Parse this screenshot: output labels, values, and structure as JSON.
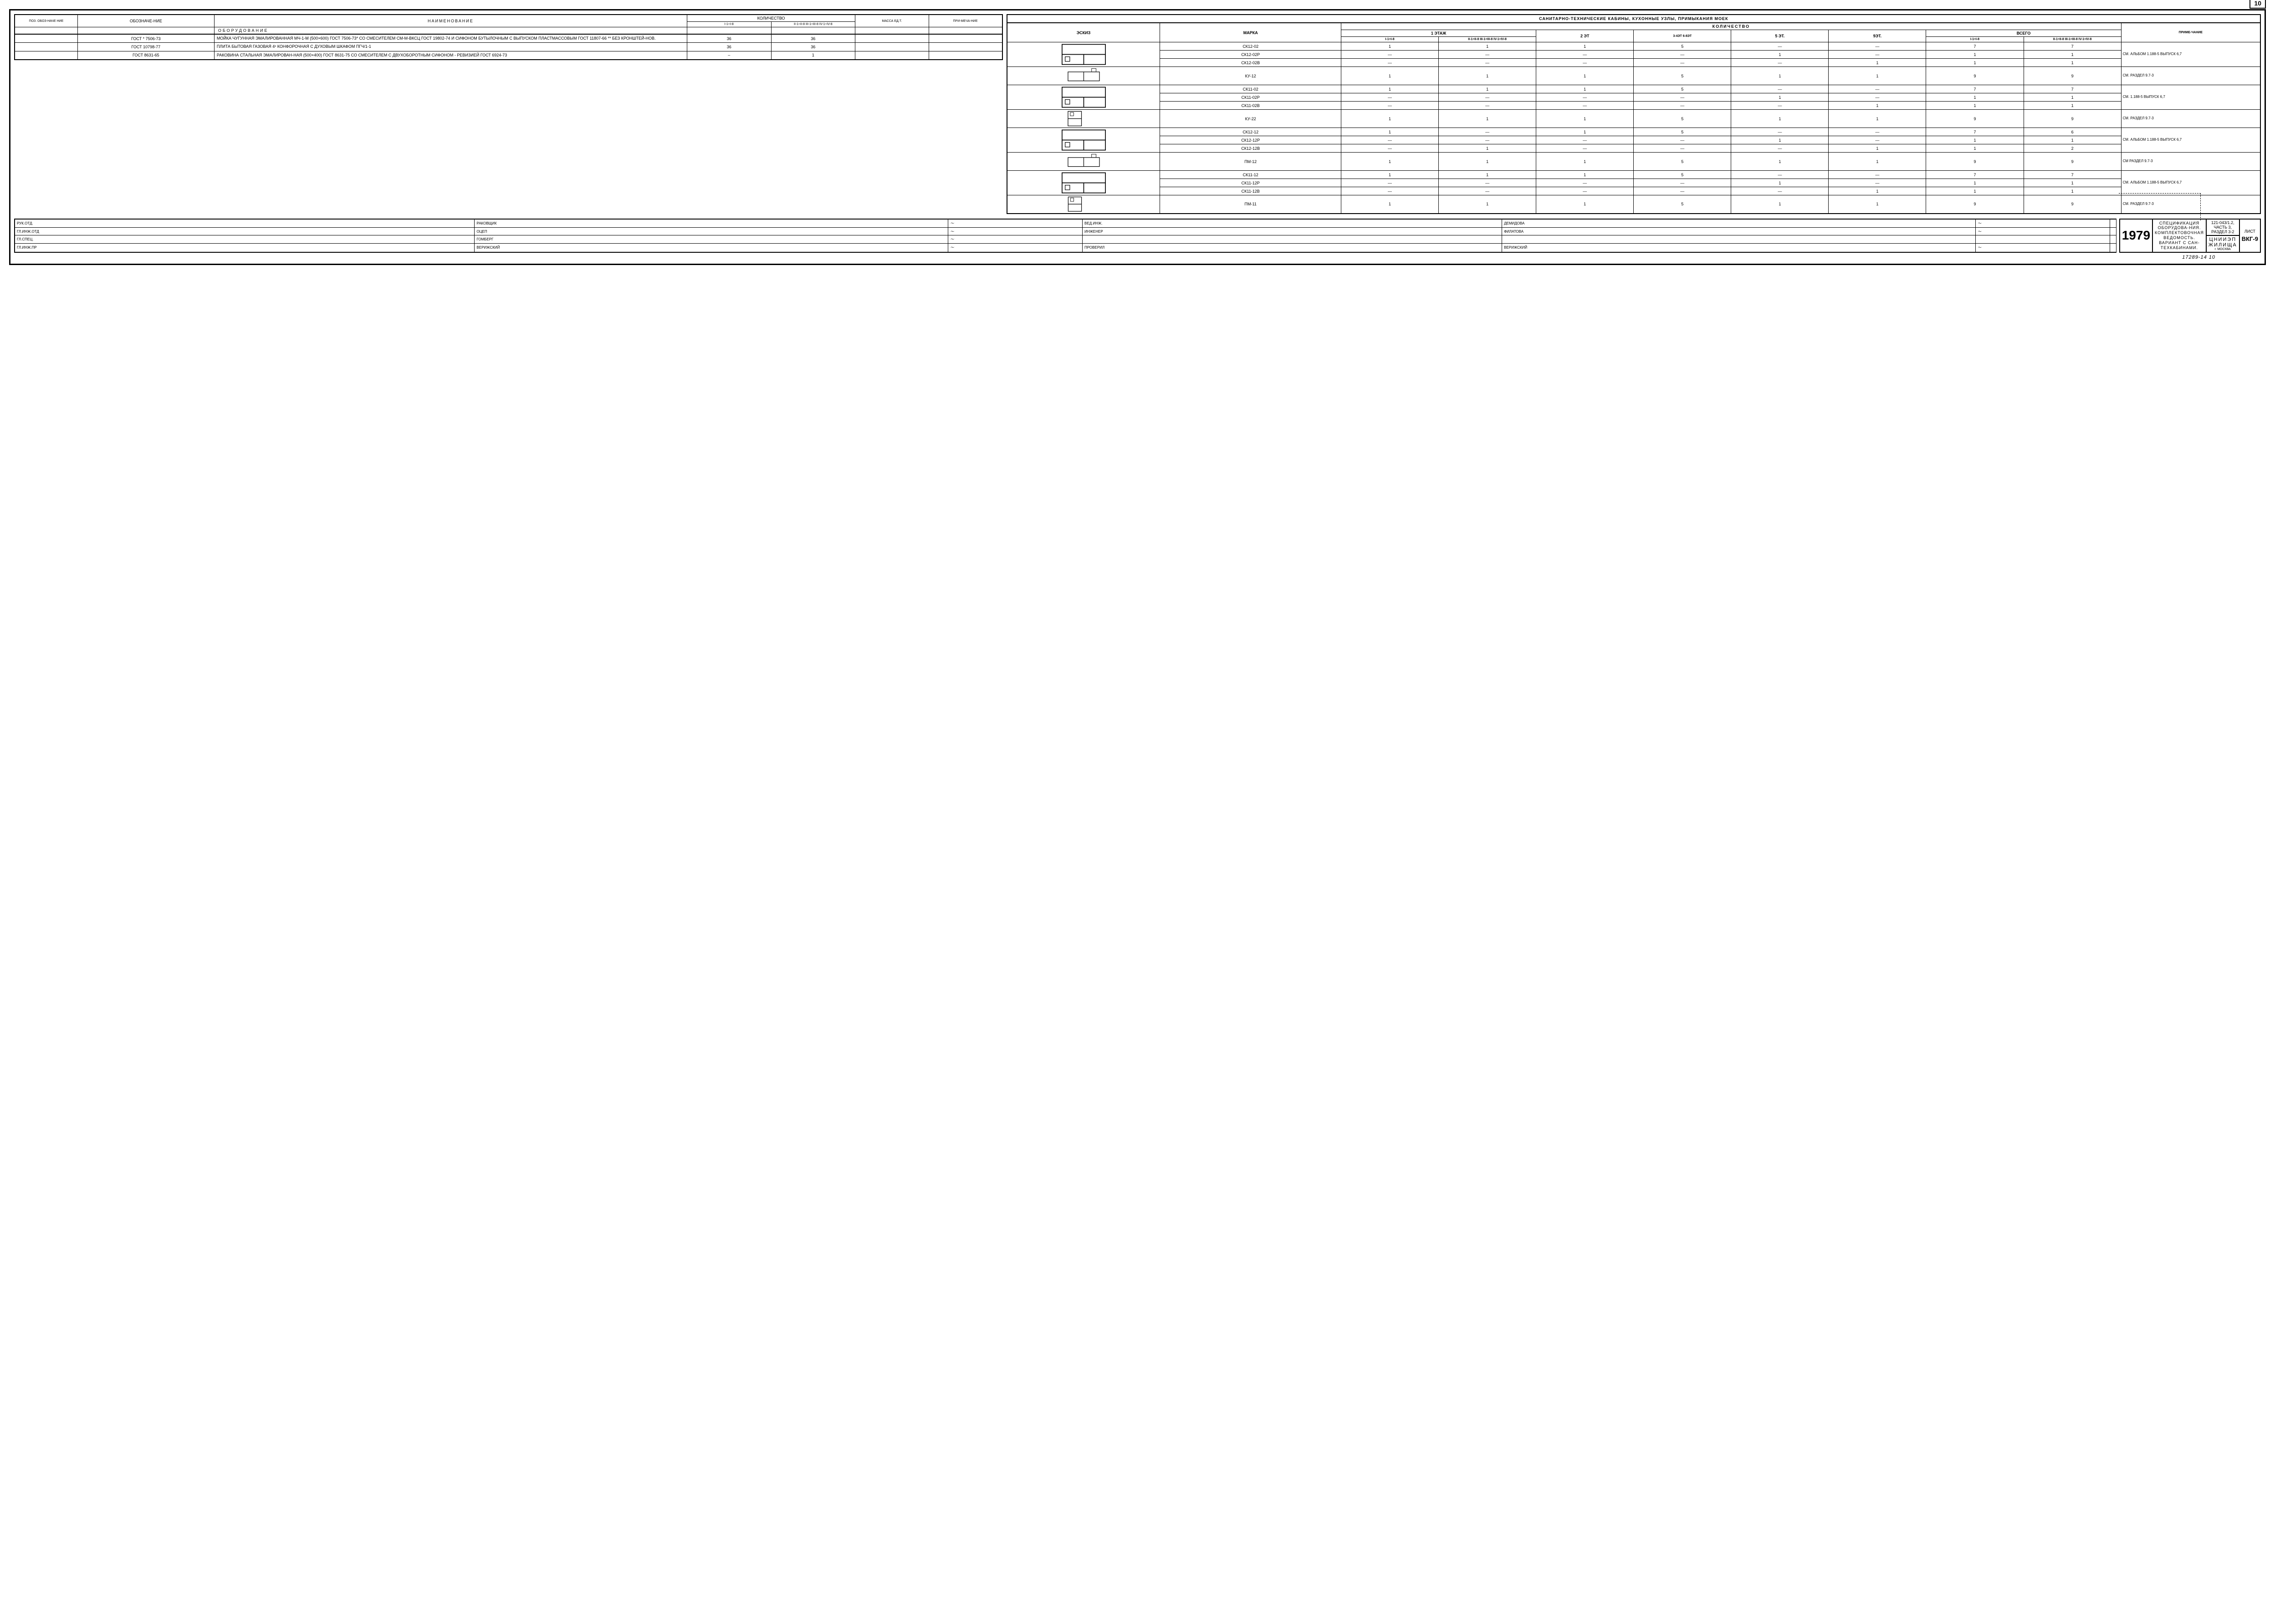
{
  "page_number_top": "10",
  "left_table": {
    "headers": {
      "pos": "ПОЗ. ОБОЗ-НАЧЕ НИЕ",
      "desig": "ОБОЗНАЧЕ-НИЕ",
      "name": "НАИМЕНОВАНИЕ",
      "qty": "КОЛИЧЕСТВО",
      "qty_col1": "I-1÷I-8",
      "qty_col2": "II-1÷II-8 III-1÷III-8 IV-1÷IV-8",
      "mass": "МАССА ЕД.Т.",
      "note": "ПРИ-МЕЧА-НИЕ"
    },
    "section": "ОБОРУДОВАНИЕ",
    "rows": [
      {
        "desig": "ГОСТ * 7506-73",
        "name": "МОЙКА ЧУГУННАЯ ЭМАЛИРОВАННАЯ МЧ-1-М (500×600) ГОСТ 7506-73* СО СМЕСИТЕЛЕМ СМ-М-ВКСЦ ГОСТ 19802-74 И СИФОНОМ БУТЫЛОЧНЫМ С ВЫПУСКОМ ПЛАСТМАССОВЫМ ГОСТ 11807-66 ** БЕЗ КРОНШТЕЙ-НОВ.",
        "q1": "36",
        "q2": "36",
        "mass": "",
        "note": ""
      },
      {
        "desig": "ГОСТ 10798-77",
        "name": "ПЛИТА БЫТОВАЯ ГАЗОВАЯ 4ˣ КОНФОРОЧНАЯ С ДУХОВЫМ ШКАФОМ ПГЧ/1-1",
        "q1": "36",
        "q2": "36",
        "mass": "",
        "note": ""
      },
      {
        "desig": "ГОСТ 8631-65",
        "name": "РАКОВИНА СТАЛЬНАЯ ЭМАЛИРОВАН-НАЯ (500×400) ГОСТ 8631-75 СО СМЕСИТЕЛЕМ С ДВУХОБОРОТНЫМ СИФОНОМ - РЕВИЗИЕЙ ГОСТ 6924-73",
        "q1": "–",
        "q2": "1",
        "mass": "",
        "note": ""
      }
    ]
  },
  "right_table": {
    "title": "САНИТАРНО-ТЕХНИЧЕСКИЕ КАБИНЫ, КУХОННЫЕ УЗЛЫ, ПРИМЫКАНИЯ МОЕК",
    "headers": {
      "sketch": "ЭСКИЗ",
      "mark": "МАРКА",
      "qty": "КОЛИЧЕСТВО",
      "floor1": "1 ЭТАЖ",
      "f1a": "I-1÷I-8",
      "f1b": "II-1÷II-8 III-1÷III-8 IV-1÷IV-8",
      "floor2": "2 ЭТ",
      "floor34": "3-4ЭТ 6-8ЭТ",
      "floor5": "5 ЭТ.",
      "floor9": "9ЭТ.",
      "total": "ВСЕГО",
      "tot_a": "I-1÷I-8",
      "tot_b": "II-1÷II-8 III-1÷III-8 IV-1÷IV-8",
      "note": "ПРИМЕ-ЧАНИЕ"
    },
    "groups": [
      {
        "sketch_rows": 3,
        "sketch": "sk1",
        "rows": [
          {
            "mark": "СК12-02",
            "v": [
              "1",
              "1",
              "1",
              "5",
              "—",
              "—",
              "7",
              "7"
            ]
          },
          {
            "mark": "СК12-02Р",
            "v": [
              "—",
              "—",
              "—",
              "—",
              "1",
              "—",
              "1",
              "1"
            ]
          },
          {
            "mark": "СК12-02В",
            "v": [
              "—",
              "—",
              "—",
              "—",
              "—",
              "1",
              "1",
              "1"
            ]
          }
        ],
        "note": "СМ. АЛЬБОМ 1.188-5 ВЫПУСК 6,7"
      },
      {
        "sketch_rows": 1,
        "sketch": "sk2",
        "rows": [
          {
            "mark": "КУ-12",
            "v": [
              "1",
              "1",
              "1",
              "5",
              "1",
              "1",
              "9",
              "9"
            ]
          }
        ],
        "note": "СМ. РАЗДЕЛ 9.7-3"
      },
      {
        "sketch_rows": 3,
        "sketch": "sk3",
        "rows": [
          {
            "mark": "СК11-02",
            "v": [
              "1",
              "1",
              "1",
              "5",
              "—",
              "—",
              "7",
              "7"
            ]
          },
          {
            "mark": "СК11-02Р",
            "v": [
              "—",
              "—",
              "—",
              "—",
              "1",
              "—",
              "1",
              "1"
            ]
          },
          {
            "mark": "СК11-02В",
            "v": [
              "—",
              "—",
              "—",
              "—",
              "—",
              "1",
              "1",
              "1"
            ]
          }
        ],
        "note": "СМ. 1.188-5 ВЫПУСК 6,7"
      },
      {
        "sketch_rows": 1,
        "sketch": "sk4",
        "rows": [
          {
            "mark": "КУ-22",
            "v": [
              "1",
              "1",
              "1",
              "5",
              "1",
              "1",
              "9",
              "9"
            ]
          }
        ],
        "note": "СМ. РАЗДЕЛ 9.7-3"
      },
      {
        "sketch_rows": 3,
        "sketch": "sk5",
        "rows": [
          {
            "mark": "СК12-12",
            "v": [
              "1",
              "—",
              "1",
              "5",
              "—",
              "—",
              "7",
              "6"
            ]
          },
          {
            "mark": "СК12-12Р",
            "v": [
              "—",
              "—",
              "—",
              "—",
              "1",
              "—",
              "1",
              "1"
            ]
          },
          {
            "mark": "СК12-12В",
            "v": [
              "—",
              "1",
              "—",
              "—",
              "—",
              "1",
              "1",
              "2"
            ]
          }
        ],
        "note": "СМ. АЛЬБОМ 1.188-5 ВЫПУСК 6,7"
      },
      {
        "sketch_rows": 1,
        "sketch": "sk6",
        "rows": [
          {
            "mark": "ПМ-12",
            "v": [
              "1",
              "1",
              "1",
              "5",
              "1",
              "1",
              "9",
              "9"
            ]
          }
        ],
        "note": "СМ РАЗДЕЛ 9.7-3"
      },
      {
        "sketch_rows": 3,
        "sketch": "sk7",
        "rows": [
          {
            "mark": "СК11-12",
            "v": [
              "1",
              "1",
              "1",
              "5",
              "—",
              "—",
              "7",
              "7"
            ]
          },
          {
            "mark": "СК11-12Р",
            "v": [
              "—",
              "—",
              "—",
              "—",
              "1",
              "—",
              "1",
              "1"
            ]
          },
          {
            "mark": "СК11-12В",
            "v": [
              "—",
              "—",
              "—",
              "—",
              "—",
              "1",
              "1",
              "1"
            ]
          }
        ],
        "note": "СМ. АЛЬБОМ 1.188-5 ВЫПУСК 6,7"
      },
      {
        "sketch_rows": 1,
        "sketch": "sk8",
        "rows": [
          {
            "mark": "ПМ-11",
            "v": [
              "1",
              "1",
              "1",
              "5",
              "1",
              "1",
              "9",
              "9"
            ]
          }
        ],
        "note": "СМ. РАЗДЕЛ 9.7-3"
      }
    ]
  },
  "title_block": {
    "signatures": [
      {
        "role": "РУК.ОТД.",
        "name": "РАКОВЩИК",
        "role2": "ВЕД.ИНЖ.",
        "name2": "ДЕМИДОВА"
      },
      {
        "role": "ГЛ.ИНЖ.ОТД",
        "name": "ОЦЕП",
        "role2": "ИНЖЕНЕР",
        "name2": "ФИЛАТОВА"
      },
      {
        "role": "ГЛ.СПЕЦ.",
        "name": "ГОМБЕРГ",
        "role2": "",
        "name2": ""
      },
      {
        "role": "ГЛ.ИНЖ.ПР",
        "name": "ВЕРИЖСКИЙ",
        "role2": "ПРОВЕРИЛ",
        "name2": "ВЕРИЖСКИЙ"
      }
    ],
    "year": "1979",
    "description": "СПЕЦИФИКАЦИЯ ОБОРУДОВА-НИЯ. КОМПЛЕКТОВОЧНАЯ ВЕДОМОСТЬ. ВАРИАНТ С САН-ТЕХКАБИНАМИ.",
    "code": "121-043/1.2, ЧАСТЬ 3, РАЗДЕЛ 3-2",
    "org": "ЦНИИЭП ЖИЛИЩА",
    "org_sub": "г. МОСКВА",
    "sheet_label": "ЛИСТ",
    "sheet": "ВКГ-9"
  },
  "footer_num": "17289-14   10"
}
